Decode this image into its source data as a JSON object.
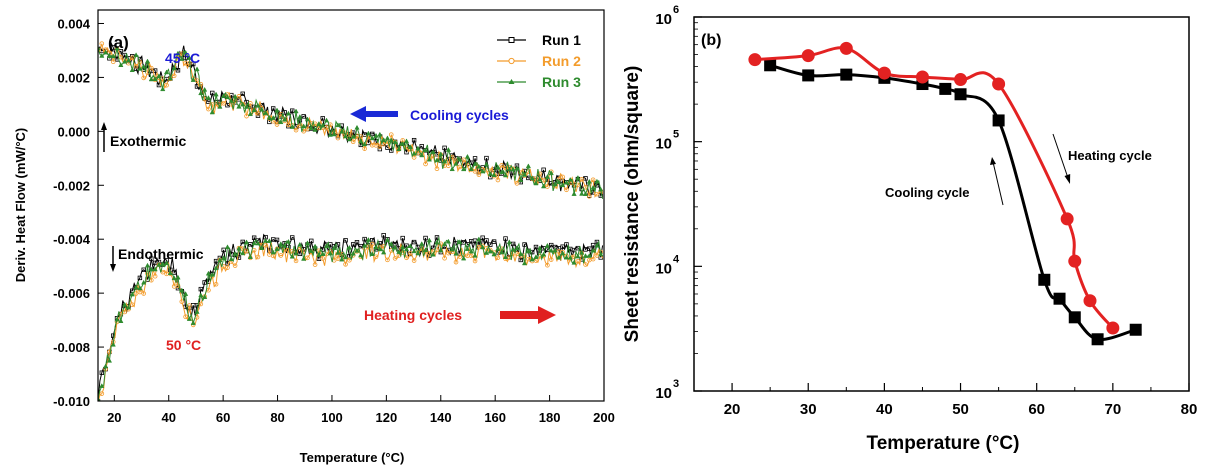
{
  "chart_data": [
    {
      "type": "line",
      "panel_label": "(a)",
      "xlabel": "Temperature (°C)",
      "ylabel": "Deriv. Heat Flow (mW/°C)",
      "xlim": [
        14,
        200
      ],
      "ylim": [
        -0.01,
        0.0045
      ],
      "xticks": [
        20,
        40,
        60,
        80,
        100,
        120,
        140,
        160,
        180,
        200
      ],
      "yticks": [
        -0.01,
        -0.008,
        -0.006,
        -0.004,
        -0.002,
        0.0,
        0.002,
        0.004
      ],
      "ytick_labels": [
        "-0.010",
        "-0.008",
        "-0.006",
        "-0.004",
        "-0.002",
        "0.000",
        "0.002",
        "0.004"
      ],
      "legend_position": "top-right",
      "series": [
        {
          "name": "Run 1",
          "color": "#000000",
          "marker": "open-square"
        },
        {
          "name": "Run 2",
          "color": "#f39c2c",
          "marker": "open-circle"
        },
        {
          "name": "Run 3",
          "color": "#2e8b2e",
          "marker": "triangle"
        }
      ],
      "cooling_curve": {
        "x": [
          14,
          20,
          25,
          30,
          35,
          38,
          42,
          45,
          48,
          52,
          55,
          60,
          65,
          70,
          80,
          90,
          100,
          110,
          120,
          130,
          140,
          150,
          160,
          170,
          180,
          190,
          200
        ],
        "y": [
          0.0031,
          0.0029,
          0.0027,
          0.0024,
          0.0021,
          0.0018,
          0.0023,
          0.0029,
          0.0024,
          0.0016,
          0.001,
          0.0012,
          0.0011,
          0.0009,
          0.0006,
          0.0003,
          0.0001,
          -0.0002,
          -0.0004,
          -0.0007,
          -0.001,
          -0.0012,
          -0.0014,
          -0.0016,
          -0.0018,
          -0.002,
          -0.0022
        ]
      },
      "heating_curve": {
        "x": [
          14,
          16,
          18,
          20,
          22,
          25,
          28,
          31,
          35,
          38,
          41,
          44,
          47,
          49,
          52,
          55,
          58,
          62,
          66,
          70,
          75,
          80,
          90,
          100,
          110,
          120,
          130,
          140,
          150,
          160,
          170,
          180,
          190,
          200
        ],
        "y": [
          -0.0098,
          -0.0092,
          -0.0083,
          -0.0075,
          -0.0068,
          -0.0064,
          -0.0059,
          -0.0055,
          -0.005,
          -0.0049,
          -0.0051,
          -0.0057,
          -0.0066,
          -0.0069,
          -0.0062,
          -0.0055,
          -0.0051,
          -0.0046,
          -0.0045,
          -0.0044,
          -0.0042,
          -0.0043,
          -0.0044,
          -0.0045,
          -0.0044,
          -0.0043,
          -0.0044,
          -0.0043,
          -0.0044,
          -0.0043,
          -0.0046,
          -0.0045,
          -0.0046,
          -0.0044
        ]
      },
      "annotations": [
        {
          "text": "45 °C",
          "color": "#1a1ad6",
          "x": 45,
          "y": 0.0034
        },
        {
          "text": "50 °C",
          "color": "#e02020",
          "x": 51,
          "y": -0.0079
        },
        {
          "text": "Cooling cycles",
          "color": "#1a1ad6",
          "arrow": "left"
        },
        {
          "text": "Heating cycles",
          "color": "#e02020",
          "arrow": "right"
        },
        {
          "text": "Exothermic",
          "arrow": "up"
        },
        {
          "text": "Endothermic",
          "arrow": "down"
        }
      ]
    },
    {
      "type": "line",
      "panel_label": "(b)",
      "xlabel": "Temperature (°C)",
      "ylabel": "Sheet resistance (ohm/square)",
      "xlim": [
        15,
        80
      ],
      "ylim": [
        1000,
        1000000
      ],
      "y_scale": "log",
      "xticks": [
        20,
        30,
        40,
        50,
        60,
        70,
        80
      ],
      "yticks": [
        1000,
        10000,
        100000,
        1000000
      ],
      "ytick_labels": [
        {
          "base": "10",
          "exp": "3"
        },
        {
          "base": "10",
          "exp": "4"
        },
        {
          "base": "10",
          "exp": "5"
        },
        {
          "base": "10",
          "exp": "6"
        }
      ],
      "series": [
        {
          "role": "cooling",
          "color": "#000000",
          "marker": "square",
          "x": [
            25,
            30,
            35,
            40,
            45,
            48,
            50,
            55,
            61,
            63,
            65,
            68,
            73
          ],
          "y": [
            410000,
            340000,
            345000,
            325000,
            290000,
            265000,
            240000,
            148000,
            7800,
            5500,
            3900,
            2600,
            3100
          ]
        },
        {
          "role": "heating",
          "color": "#e32222",
          "marker": "circle",
          "x": [
            23,
            30,
            35,
            40,
            45,
            50,
            55,
            64,
            65,
            67,
            70
          ],
          "y": [
            455000,
            490000,
            560000,
            355000,
            330000,
            315000,
            290000,
            24000,
            11000,
            5300,
            3200
          ]
        }
      ],
      "annotations": [
        {
          "text": "Heating cycle",
          "arrow": "down"
        },
        {
          "text": "Cooling cycle",
          "arrow": "up"
        }
      ]
    }
  ]
}
